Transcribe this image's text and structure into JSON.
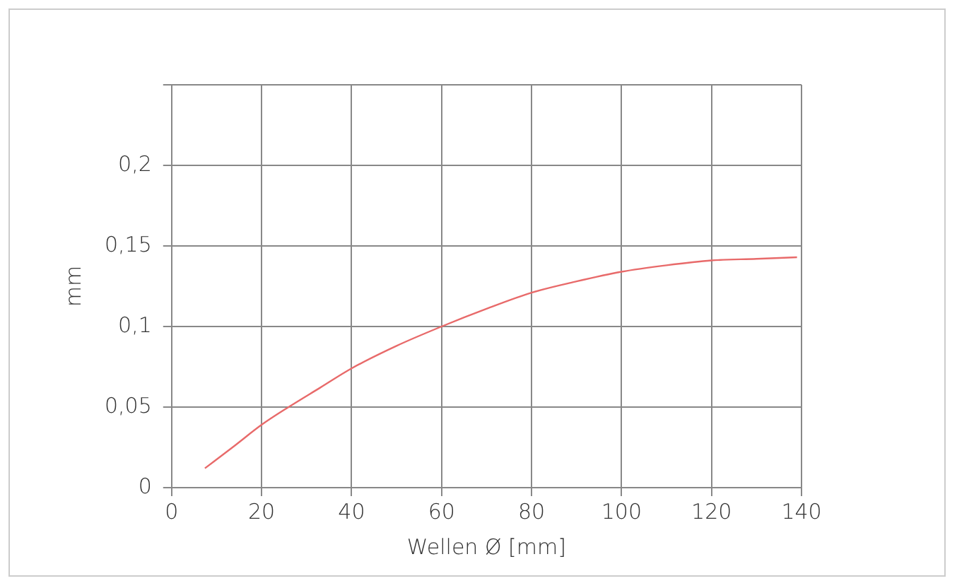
{
  "chart_data": {
    "type": "line",
    "xlabel": "Wellen Ø [mm]",
    "ylabel": "mm",
    "series": [
      {
        "color": "#e86a6a",
        "x": [
          7.4,
          14,
          20,
          26,
          33,
          40,
          50,
          60,
          70,
          80,
          90,
          100,
          110,
          120,
          130,
          139
        ],
        "values": [
          0.012,
          0.026,
          0.039,
          0.05,
          0.062,
          0.074,
          0.088,
          0.1,
          0.111,
          0.121,
          0.128,
          0.134,
          0.138,
          0.141,
          0.142,
          0.143
        ]
      }
    ],
    "xlim": [
      0,
      140
    ],
    "xticks": [
      0,
      20,
      40,
      60,
      80,
      100,
      120,
      140
    ],
    "ylim": [
      0,
      0.25
    ],
    "yticks": [
      {
        "value": 0,
        "label": "0"
      },
      {
        "value": 0.05,
        "label": "0,05"
      },
      {
        "value": 0.1,
        "label": "0,1"
      },
      {
        "value": 0.15,
        "label": "0,15"
      },
      {
        "value": 0.2,
        "label": "0,2"
      },
      {
        "value": 0.25,
        "label": null
      }
    ],
    "grid": true,
    "legend": false,
    "marker": "none",
    "line_style": "solid"
  }
}
